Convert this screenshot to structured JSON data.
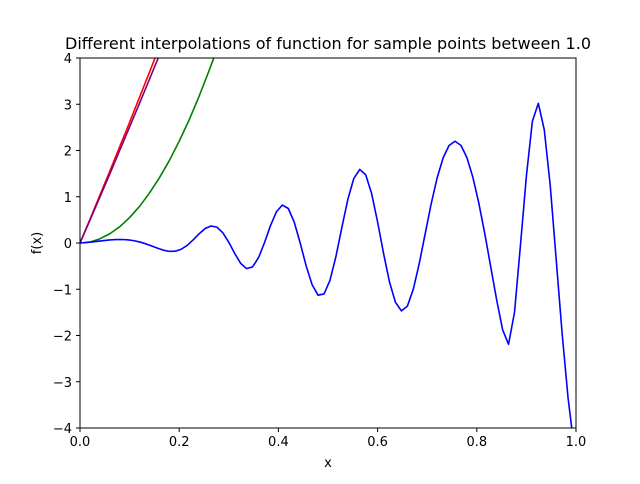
{
  "chart_data": {
    "type": "line",
    "title": "Different interpolations of function for sample points between 1.0",
    "xlabel": "x",
    "ylabel": "f(x)",
    "xlim": [
      0.0,
      1.0
    ],
    "ylim": [
      -4,
      4
    ],
    "xticks": [
      0.0,
      0.2,
      0.4,
      0.6,
      0.8,
      1.0
    ],
    "xtick_labels": [
      "0.0",
      "0.2",
      "0.4",
      "0.6",
      "0.8",
      "1.0"
    ],
    "yticks": [
      -4,
      -3,
      -2,
      -1,
      0,
      1,
      2,
      3,
      4
    ],
    "ytick_labels": [
      "−4",
      "−3",
      "−2",
      "−1",
      "0",
      "1",
      "2",
      "3",
      "4"
    ],
    "grid": false,
    "legend": null,
    "series": [
      {
        "color": "#ff0000",
        "x": [
          0.0,
          0.02,
          0.04,
          0.06,
          0.08,
          0.1,
          0.12,
          0.14,
          0.16
        ],
        "y": [
          0.0,
          0.51,
          1.03,
          1.55,
          2.08,
          2.61,
          3.15,
          3.69,
          4.24
        ]
      },
      {
        "color": "#800080",
        "x": [
          0.0,
          0.02,
          0.04,
          0.06,
          0.08,
          0.1,
          0.12,
          0.14,
          0.16
        ],
        "y": [
          0.0,
          0.49,
          0.99,
          1.49,
          2.0,
          2.51,
          3.02,
          3.54,
          4.06
        ]
      },
      {
        "color": "#008000",
        "x": [
          0.0,
          0.02,
          0.04,
          0.06,
          0.08,
          0.1,
          0.12,
          0.14,
          0.16,
          0.18,
          0.2,
          0.22,
          0.24,
          0.26,
          0.27
        ],
        "y": [
          0.0,
          0.02,
          0.09,
          0.2,
          0.35,
          0.55,
          0.79,
          1.08,
          1.41,
          1.78,
          2.2,
          2.66,
          3.17,
          3.72,
          4.01
        ]
      },
      {
        "color": "#0000ff",
        "x": [
          0.0,
          0.012,
          0.024,
          0.036,
          0.048,
          0.06,
          0.072,
          0.084,
          0.096,
          0.108,
          0.12,
          0.132,
          0.144,
          0.156,
          0.168,
          0.18,
          0.192,
          0.204,
          0.216,
          0.228,
          0.24,
          0.252,
          0.264,
          0.276,
          0.288,
          0.3,
          0.312,
          0.324,
          0.336,
          0.348,
          0.36,
          0.372,
          0.384,
          0.396,
          0.408,
          0.42,
          0.432,
          0.444,
          0.456,
          0.468,
          0.48,
          0.492,
          0.504,
          0.516,
          0.528,
          0.54,
          0.552,
          0.564,
          0.576,
          0.588,
          0.6,
          0.612,
          0.624,
          0.636,
          0.648,
          0.66,
          0.672,
          0.684,
          0.696,
          0.708,
          0.72,
          0.732,
          0.744,
          0.756,
          0.768,
          0.78,
          0.792,
          0.804,
          0.816,
          0.828,
          0.84,
          0.852,
          0.864,
          0.876,
          0.888,
          0.9,
          0.912,
          0.924,
          0.936,
          0.948,
          0.96,
          0.972,
          0.984,
          0.992
        ],
        "y": [
          0.0,
          0.01,
          0.022,
          0.037,
          0.053,
          0.066,
          0.074,
          0.076,
          0.069,
          0.051,
          0.023,
          -0.015,
          -0.062,
          -0.111,
          -0.155,
          -0.181,
          -0.178,
          -0.135,
          -0.052,
          0.066,
          0.198,
          0.31,
          0.368,
          0.343,
          0.22,
          0.015,
          -0.228,
          -0.441,
          -0.555,
          -0.516,
          -0.316,
          0.008,
          0.374,
          0.675,
          0.82,
          0.746,
          0.449,
          -0.003,
          -0.496,
          -0.903,
          -1.128,
          -1.101,
          -0.807,
          -0.291,
          0.34,
          0.943,
          1.394,
          1.59,
          1.476,
          1.067,
          0.454,
          -0.226,
          -0.843,
          -1.283,
          -1.468,
          -1.366,
          -0.999,
          -0.443,
          0.204,
          0.846,
          1.406,
          1.838,
          2.108,
          2.2,
          2.111,
          1.848,
          1.425,
          0.866,
          0.207,
          -0.51,
          -1.227,
          -1.874,
          -2.19,
          -1.5,
          -0.05,
          1.45,
          2.63,
          3.02,
          2.45,
          1.25,
          -0.35,
          -1.95,
          -3.35,
          -4.05
        ]
      }
    ]
  }
}
